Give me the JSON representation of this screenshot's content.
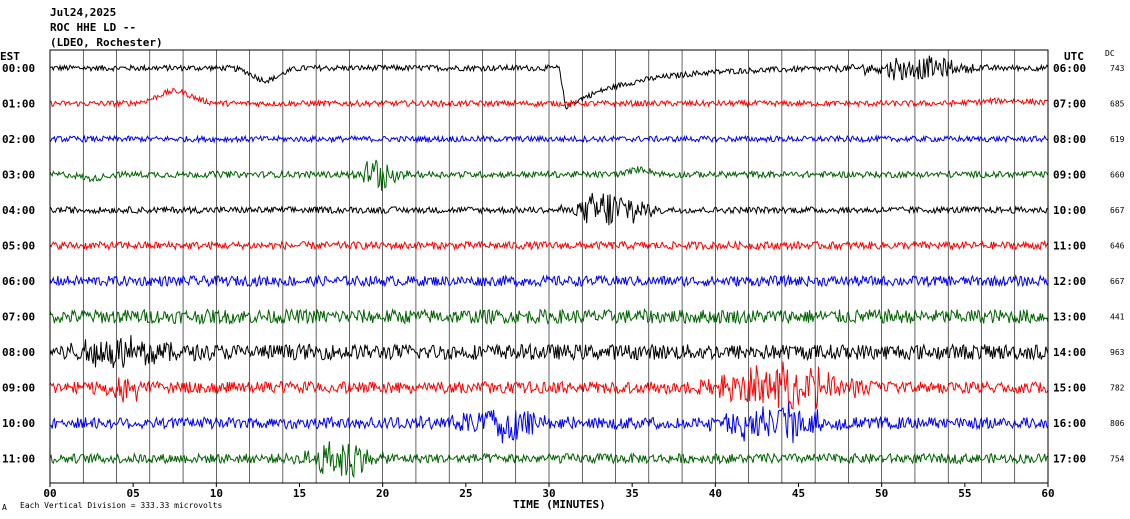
{
  "chart_data": {
    "type": "line",
    "title": {
      "date": "Jul24,2025",
      "station": "ROC HHE LD --",
      "network": "(LDEO, Rochester)"
    },
    "left_tz_label": "EST",
    "right_tz_label": "UTC",
    "dc_label": "DC",
    "xlabel": "TIME (MINUTES)",
    "footer": "Each Vertical Division =  333.33 microvolts",
    "footer_mark": "A",
    "xlim": [
      0,
      60
    ],
    "x_ticks": [
      "00",
      "05",
      "10",
      "15",
      "20",
      "25",
      "30",
      "35",
      "40",
      "45",
      "50",
      "55",
      "60"
    ],
    "grid": "vertical-every-2-minutes",
    "colors": [
      "#000000",
      "#ff0000",
      "#0000ff",
      "#006400"
    ],
    "rows": [
      {
        "est": "00:00",
        "utc": "06:00",
        "dc": "743",
        "color": "#000000",
        "noise": 0.9,
        "events": [
          {
            "t": 13.0,
            "amp": -3.5,
            "type": "pulse",
            "w": 0.8
          },
          {
            "t": 31.0,
            "amp": -13,
            "type": "step",
            "w": 4
          },
          {
            "t": 52.0,
            "amp": 3,
            "type": "burst",
            "w": 2
          }
        ]
      },
      {
        "est": "01:00",
        "utc": "07:00",
        "dc": "685",
        "color": "#ff0000",
        "noise": 0.9,
        "events": [
          {
            "t": 7.5,
            "amp": 3.5,
            "type": "pulse",
            "w": 1.0
          },
          {
            "t": 57.5,
            "amp": 0.8,
            "type": "pulse",
            "w": 1.5
          }
        ]
      },
      {
        "est": "02:00",
        "utc": "08:00",
        "dc": "619",
        "color": "#0000ff",
        "noise": 0.9,
        "events": []
      },
      {
        "est": "03:00",
        "utc": "09:00",
        "dc": "660",
        "color": "#006400",
        "noise": 1.0,
        "events": [
          {
            "t": 2.5,
            "amp": -1.2,
            "type": "pulse",
            "w": 0.6
          },
          {
            "t": 19.8,
            "amp": 5,
            "type": "burst",
            "w": 0.7
          },
          {
            "t": 35.5,
            "amp": 1.5,
            "type": "pulse",
            "w": 0.6
          }
        ]
      },
      {
        "est": "04:00",
        "utc": "10:00",
        "dc": "667",
        "color": "#000000",
        "noise": 1.0,
        "events": [
          {
            "t": 33.7,
            "amp": 5,
            "type": "burst",
            "w": 1.5
          }
        ]
      },
      {
        "est": "05:00",
        "utc": "11:00",
        "dc": "646",
        "color": "#ff0000",
        "noise": 1.2,
        "events": []
      },
      {
        "est": "06:00",
        "utc": "12:00",
        "dc": "667",
        "color": "#0000ff",
        "noise": 1.6,
        "events": []
      },
      {
        "est": "07:00",
        "utc": "13:00",
        "dc": "441",
        "color": "#006400",
        "noise": 2.2,
        "events": []
      },
      {
        "est": "08:00",
        "utc": "14:00",
        "dc": "963",
        "color": "#000000",
        "noise": 2.4,
        "events": [
          {
            "t": 4.5,
            "amp": 4,
            "type": "burst",
            "w": 2
          }
        ]
      },
      {
        "est": "09:00",
        "utc": "15:00",
        "dc": "782",
        "color": "#ff0000",
        "noise": 1.8,
        "events": [
          {
            "t": 4.5,
            "amp": 3,
            "type": "burst",
            "w": 1
          },
          {
            "t": 44.0,
            "amp": 6,
            "type": "burst",
            "w": 2.5
          }
        ]
      },
      {
        "est": "10:00",
        "utc": "16:00",
        "dc": "806",
        "color": "#0000ff",
        "noise": 1.8,
        "events": [
          {
            "t": 27.0,
            "amp": 4,
            "type": "burst",
            "w": 2
          },
          {
            "t": 43.5,
            "amp": 5,
            "type": "burst",
            "w": 2
          }
        ]
      },
      {
        "est": "11:00",
        "utc": "17:00",
        "dc": "754",
        "color": "#006400",
        "noise": 1.5,
        "events": [
          {
            "t": 17.5,
            "amp": 5,
            "type": "burst",
            "w": 1.2
          }
        ]
      }
    ]
  }
}
